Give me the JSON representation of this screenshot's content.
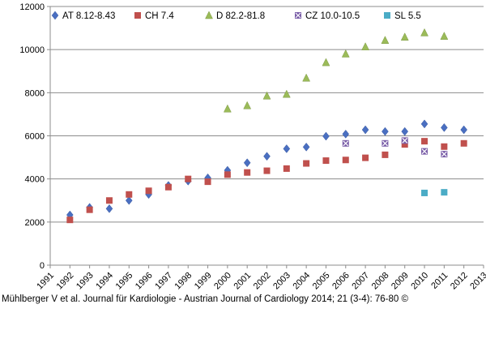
{
  "chart_data": {
    "type": "scatter",
    "title": "",
    "xlabel": "",
    "ylabel": "",
    "ylim": [
      0,
      12000
    ],
    "yticks": [
      0,
      2000,
      4000,
      6000,
      8000,
      10000,
      12000
    ],
    "xlim": [
      1991,
      2013
    ],
    "xticks": [
      "1991",
      "1992",
      "1993",
      "1994",
      "1995",
      "1996",
      "1997",
      "1998",
      "1999",
      "2000",
      "2001",
      "2002",
      "2003",
      "2004",
      "2005",
      "2006",
      "2007",
      "2008",
      "2009",
      "2010",
      "2011",
      "2012",
      "2013"
    ],
    "grid": "horizontal",
    "legend": "top",
    "series": [
      {
        "name": "AT 8.12-8.43",
        "marker": "diamond",
        "color": "#4a6fc1",
        "x": [
          1992,
          1993,
          1994,
          1995,
          1996,
          1997,
          1998,
          1999,
          2000,
          2001,
          2002,
          2003,
          2004,
          2005,
          2006,
          2007,
          2008,
          2009,
          2010,
          2011,
          2012
        ],
        "y": [
          2330,
          2680,
          2620,
          3000,
          3280,
          3700,
          3900,
          4050,
          4400,
          4750,
          5050,
          5400,
          5480,
          5980,
          6080,
          6280,
          6200,
          6200,
          6550,
          6380,
          6280
        ]
      },
      {
        "name": "CH 7.4",
        "marker": "square",
        "color": "#c0504d",
        "x": [
          1992,
          1993,
          1994,
          1995,
          1996,
          1997,
          1998,
          1999,
          2000,
          2001,
          2002,
          2003,
          2004,
          2005,
          2006,
          2007,
          2008,
          2009,
          2010,
          2011,
          2012
        ],
        "y": [
          2100,
          2570,
          3000,
          3280,
          3450,
          3620,
          4000,
          3870,
          4200,
          4300,
          4380,
          4480,
          4720,
          4850,
          4880,
          4980,
          5120,
          5600,
          5750,
          5500,
          5650
        ]
      },
      {
        "name": "D 82.2-81.8",
        "marker": "triangle",
        "color": "#9bbb59",
        "x": [
          2000,
          2001,
          2002,
          2003,
          2004,
          2005,
          2006,
          2007,
          2008,
          2009,
          2010,
          2011
        ],
        "y": [
          7250,
          7400,
          7850,
          7930,
          8680,
          9400,
          9800,
          10130,
          10430,
          10580,
          10780,
          10620
        ]
      },
      {
        "name": "CZ 10.0-10.5",
        "marker": "x-square",
        "color": "#7a5ea8",
        "x": [
          2006,
          2008,
          2009,
          2010,
          2011
        ],
        "y": [
          5650,
          5650,
          5780,
          5280,
          5150
        ]
      },
      {
        "name": "SL 5.5",
        "marker": "square",
        "color": "#4bacc6",
        "x": [
          2010,
          2011
        ],
        "y": [
          3350,
          3380
        ]
      }
    ]
  },
  "credit": "Mühlberger V et al. Journal für Kardiologie - Austrian Journal of Cardiology 2014; 21 (3-4): 76-80 ©"
}
